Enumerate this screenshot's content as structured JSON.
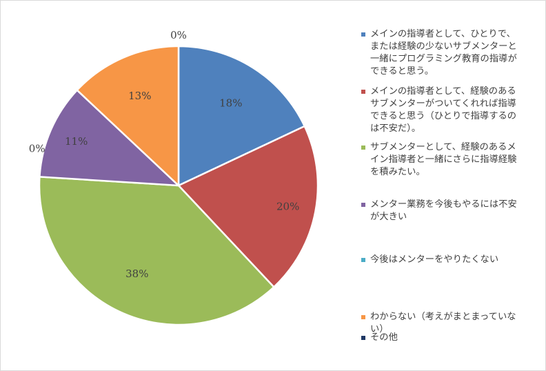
{
  "chart_data": {
    "type": "pie",
    "categories": [
      "メインの指導者として、ひとりで、\nまたは経験の少ないサブメンターと\n一緒にプログラミング教育の指導が\nできると思う。",
      "メインの指導者として、経験のある\nサブメンターがついてくれれば指導\nできると思う（ひとりで指導するの\nは不安だ）。",
      "サブメンターとして、経験のあるメ\nイン指導者と一緒にさらに指導経験\nを積みたい。",
      "メンター業務を今後もやるには不安\nが大きい",
      "今後はメンターをやりたくない",
      "わからない（考えがまとまっていな\nい）",
      "その他"
    ],
    "values": [
      18,
      20,
      38,
      11,
      0,
      13,
      0
    ],
    "data_labels": [
      "18%",
      "20%",
      "38%",
      "11%",
      "0%",
      "13%",
      "0%"
    ],
    "colors": [
      "#4f81bd",
      "#c0504d",
      "#9bbb59",
      "#8064a2",
      "#4bacc6",
      "#f79646",
      "#1f3864"
    ],
    "legend_position": "right"
  }
}
